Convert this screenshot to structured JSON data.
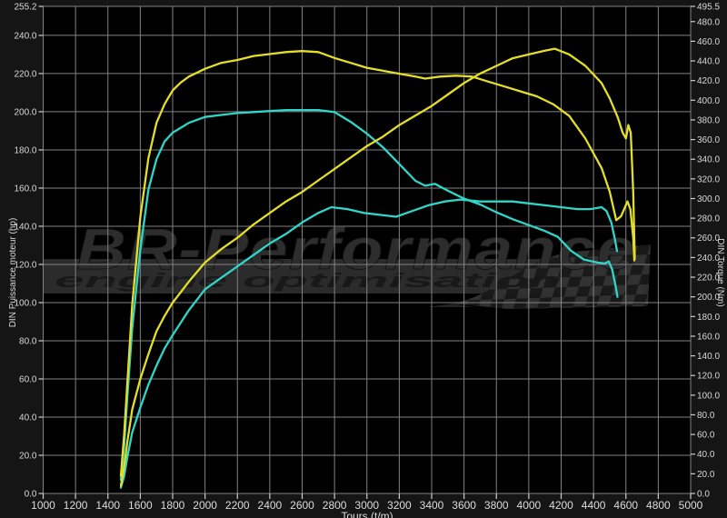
{
  "watermark": {
    "brand": "BR-Performance",
    "tagline": "engine optimisation"
  },
  "colors": {
    "tuned_yellow": "#e4de2a",
    "stock_cyan": "#2fd6c9",
    "grid": "#828282",
    "plot_background": "#000000",
    "outer_background": "#151515",
    "tick_label": "#d9d9d9",
    "watermark_gray": "#2d2d2d",
    "band_gray": "#353535",
    "check_dark": "#191919",
    "check_light": "#323232"
  },
  "chart_data": {
    "type": "line",
    "title": "",
    "xlabel": "Tours (t/m)",
    "ylabel_left": "DIN Puissance moteur (hp)",
    "ylabel_right": "DIN Torque (Nm)",
    "x_range": [
      1000,
      5000
    ],
    "left_range": [
      0,
      255.2
    ],
    "right_range": [
      0,
      495.5
    ],
    "grid": true,
    "legend": "none",
    "x_ticks": [
      1000,
      1200,
      1400,
      1600,
      1800,
      2000,
      2200,
      2400,
      2600,
      2800,
      3000,
      3200,
      3400,
      3600,
      3800,
      4000,
      4200,
      4400,
      4600,
      4800,
      5000
    ],
    "left_ticks": [
      0,
      20,
      40,
      60,
      80,
      100,
      120,
      140,
      160,
      180,
      200,
      220,
      240,
      255.2
    ],
    "right_ticks": [
      0,
      20,
      40,
      60,
      80,
      100,
      120,
      140,
      160,
      180,
      200,
      220,
      240,
      260,
      280,
      300,
      320,
      340,
      360,
      380,
      400,
      420,
      440,
      460,
      480,
      495.5
    ],
    "series": [
      {
        "name": "stock-torque-nm",
        "axis": "right",
        "color": "#2fd6c9",
        "points": [
          [
            1480,
            14
          ],
          [
            1500,
            48
          ],
          [
            1520,
            98
          ],
          [
            1550,
            168
          ],
          [
            1600,
            248
          ],
          [
            1650,
            309
          ],
          [
            1700,
            340
          ],
          [
            1750,
            358
          ],
          [
            1800,
            367
          ],
          [
            1850,
            372
          ],
          [
            1900,
            377
          ],
          [
            2000,
            383
          ],
          [
            2100,
            385
          ],
          [
            2200,
            387
          ],
          [
            2300,
            388
          ],
          [
            2400,
            389
          ],
          [
            2500,
            390
          ],
          [
            2600,
            390
          ],
          [
            2700,
            390
          ],
          [
            2800,
            388
          ],
          [
            2900,
            378
          ],
          [
            3000,
            366
          ],
          [
            3100,
            352
          ],
          [
            3200,
            335
          ],
          [
            3300,
            318
          ],
          [
            3360,
            313
          ],
          [
            3420,
            315
          ],
          [
            3500,
            308
          ],
          [
            3600,
            300
          ],
          [
            3700,
            294
          ],
          [
            3800,
            286
          ],
          [
            3900,
            279
          ],
          [
            4000,
            273
          ],
          [
            4100,
            267
          ],
          [
            4180,
            261
          ],
          [
            4260,
            247
          ],
          [
            4340,
            238
          ],
          [
            4420,
            235
          ],
          [
            4470,
            234
          ],
          [
            4495,
            236
          ],
          [
            4515,
            228
          ],
          [
            4535,
            212
          ],
          [
            4548,
            200
          ]
        ]
      },
      {
        "name": "stock-power-hp",
        "axis": "left",
        "color": "#2fd6c9",
        "points": [
          [
            1480,
            3
          ],
          [
            1500,
            9
          ],
          [
            1520,
            19
          ],
          [
            1550,
            32
          ],
          [
            1600,
            45
          ],
          [
            1650,
            57
          ],
          [
            1700,
            67
          ],
          [
            1750,
            76
          ],
          [
            1800,
            83
          ],
          [
            1900,
            96
          ],
          [
            2000,
            107
          ],
          [
            2100,
            113
          ],
          [
            2200,
            119
          ],
          [
            2300,
            125
          ],
          [
            2400,
            131
          ],
          [
            2500,
            136
          ],
          [
            2600,
            142
          ],
          [
            2700,
            147
          ],
          [
            2780,
            150
          ],
          [
            2880,
            149
          ],
          [
            2980,
            147
          ],
          [
            3080,
            146
          ],
          [
            3180,
            145
          ],
          [
            3280,
            148
          ],
          [
            3380,
            151
          ],
          [
            3480,
            153
          ],
          [
            3580,
            154
          ],
          [
            3700,
            153
          ],
          [
            3800,
            153
          ],
          [
            3900,
            153
          ],
          [
            4000,
            152
          ],
          [
            4100,
            151
          ],
          [
            4200,
            150
          ],
          [
            4300,
            149
          ],
          [
            4380,
            149
          ],
          [
            4450,
            150
          ],
          [
            4480,
            148
          ],
          [
            4510,
            142
          ],
          [
            4530,
            134
          ],
          [
            4545,
            127
          ]
        ]
      },
      {
        "name": "tuned-torque-nm",
        "axis": "right",
        "color": "#e4de2a",
        "points": [
          [
            1480,
            18
          ],
          [
            1500,
            60
          ],
          [
            1520,
            112
          ],
          [
            1550,
            192
          ],
          [
            1600,
            281
          ],
          [
            1650,
            341
          ],
          [
            1700,
            377
          ],
          [
            1750,
            396
          ],
          [
            1800,
            410
          ],
          [
            1850,
            418
          ],
          [
            1900,
            424
          ],
          [
            2000,
            432
          ],
          [
            2100,
            438
          ],
          [
            2200,
            441
          ],
          [
            2300,
            445
          ],
          [
            2400,
            447
          ],
          [
            2500,
            449
          ],
          [
            2600,
            450
          ],
          [
            2700,
            449
          ],
          [
            2800,
            443
          ],
          [
            2900,
            438
          ],
          [
            3000,
            433
          ],
          [
            3100,
            430
          ],
          [
            3200,
            427
          ],
          [
            3300,
            424
          ],
          [
            3360,
            422
          ],
          [
            3450,
            424
          ],
          [
            3550,
            425
          ],
          [
            3650,
            424
          ],
          [
            3750,
            419
          ],
          [
            3850,
            414
          ],
          [
            3950,
            409
          ],
          [
            4050,
            404
          ],
          [
            4150,
            396
          ],
          [
            4250,
            384
          ],
          [
            4350,
            361
          ],
          [
            4450,
            331
          ],
          [
            4500,
            307
          ],
          [
            4540,
            278
          ],
          [
            4570,
            282
          ],
          [
            4610,
            297
          ],
          [
            4628,
            289
          ],
          [
            4645,
            260
          ],
          [
            4652,
            237
          ]
        ]
      },
      {
        "name": "tuned-power-hp",
        "axis": "left",
        "color": "#e4de2a",
        "points": [
          [
            1480,
            4
          ],
          [
            1500,
            14
          ],
          [
            1520,
            27
          ],
          [
            1550,
            44
          ],
          [
            1600,
            60
          ],
          [
            1650,
            73
          ],
          [
            1700,
            85
          ],
          [
            1750,
            93
          ],
          [
            1800,
            100
          ],
          [
            1900,
            111
          ],
          [
            2000,
            121
          ],
          [
            2100,
            128
          ],
          [
            2200,
            134
          ],
          [
            2300,
            141
          ],
          [
            2400,
            147
          ],
          [
            2500,
            153
          ],
          [
            2600,
            158
          ],
          [
            2700,
            164
          ],
          [
            2800,
            170
          ],
          [
            2900,
            176
          ],
          [
            3000,
            182
          ],
          [
            3100,
            187
          ],
          [
            3200,
            193
          ],
          [
            3300,
            198
          ],
          [
            3400,
            203
          ],
          [
            3500,
            209
          ],
          [
            3600,
            215
          ],
          [
            3700,
            220
          ],
          [
            3800,
            224
          ],
          [
            3900,
            228
          ],
          [
            4000,
            230
          ],
          [
            4100,
            232
          ],
          [
            4160,
            233
          ],
          [
            4250,
            230
          ],
          [
            4350,
            224
          ],
          [
            4450,
            215
          ],
          [
            4500,
            207
          ],
          [
            4550,
            197
          ],
          [
            4580,
            189
          ],
          [
            4600,
            186
          ],
          [
            4615,
            193
          ],
          [
            4630,
            189
          ],
          [
            4645,
            158
          ],
          [
            4655,
            123
          ]
        ]
      }
    ]
  }
}
